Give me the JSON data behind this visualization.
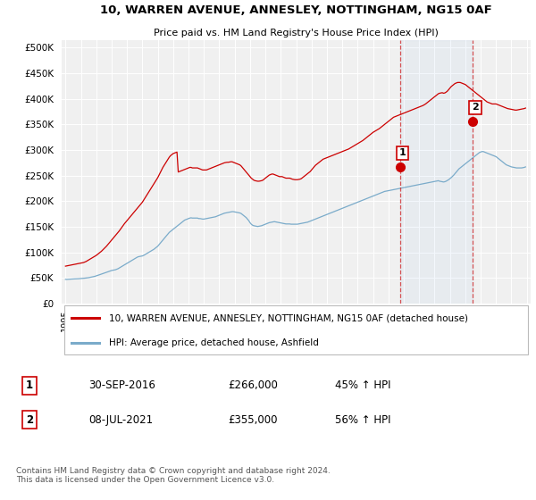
{
  "title": "10, WARREN AVENUE, ANNESLEY, NOTTINGHAM, NG15 0AF",
  "subtitle": "Price paid vs. HM Land Registry's House Price Index (HPI)",
  "ytick_values": [
    0,
    50000,
    100000,
    150000,
    200000,
    250000,
    300000,
    350000,
    400000,
    450000,
    500000
  ],
  "ylim": [
    0,
    515000
  ],
  "red_line_color": "#cc0000",
  "blue_line_color": "#7aabca",
  "marker1_date": 2016.75,
  "marker1_value": 266000,
  "marker2_date": 2021.5,
  "marker2_value": 355000,
  "vline_color": "#cc0000",
  "legend_label_red": "10, WARREN AVENUE, ANNESLEY, NOTTINGHAM, NG15 0AF (detached house)",
  "legend_label_blue": "HPI: Average price, detached house, Ashfield",
  "table_row1": [
    "1",
    "30-SEP-2016",
    "£266,000",
    "45% ↑ HPI"
  ],
  "table_row2": [
    "2",
    "08-JUL-2021",
    "£355,000",
    "56% ↑ HPI"
  ],
  "footnote": "Contains HM Land Registry data © Crown copyright and database right 2024.\nThis data is licensed under the Open Government Licence v3.0.",
  "hpi_monthly": {
    "start_year": 1995,
    "start_month": 1,
    "values": [
      47200,
      47100,
      47300,
      47500,
      47600,
      47800,
      47900,
      48000,
      48100,
      48200,
      48400,
      48600,
      48800,
      49000,
      49200,
      49500,
      49800,
      50100,
      50500,
      51000,
      51500,
      52000,
      52600,
      53200,
      54000,
      54800,
      55700,
      56600,
      57500,
      58400,
      59200,
      60000,
      61000,
      62000,
      63000,
      64000,
      64500,
      65000,
      65500,
      66000,
      67000,
      68000,
      69500,
      71000,
      72500,
      74000,
      75500,
      77000,
      78500,
      80000,
      81500,
      83000,
      84500,
      86000,
      87500,
      89000,
      90500,
      91500,
      92000,
      92500,
      93000,
      94000,
      95500,
      97000,
      98500,
      100000,
      101500,
      103000,
      104500,
      106000,
      108000,
      110000,
      112000,
      115000,
      118000,
      121000,
      124000,
      127000,
      130000,
      133000,
      136000,
      139000,
      141000,
      143000,
      145000,
      147000,
      149000,
      151000,
      153000,
      155000,
      157000,
      159000,
      161000,
      163000,
      164000,
      165000,
      166000,
      167000,
      167500,
      167000,
      167000,
      167000,
      167000,
      167000,
      166000,
      166000,
      165500,
      165000,
      165000,
      165500,
      166000,
      166500,
      167000,
      167500,
      168000,
      168500,
      169000,
      169500,
      170500,
      171500,
      172500,
      173500,
      174500,
      175500,
      176500,
      177000,
      177500,
      178000,
      178500,
      179000,
      179500,
      179500,
      179000,
      178500,
      178000,
      177500,
      177000,
      176000,
      174000,
      172000,
      170000,
      168000,
      165000,
      162000,
      158000,
      155000,
      153000,
      152000,
      151500,
      151000,
      150500,
      151000,
      151500,
      152000,
      153000,
      154000,
      155000,
      156000,
      157000,
      158000,
      158500,
      159000,
      159500,
      160000,
      159500,
      159000,
      158500,
      158000,
      157500,
      157000,
      156500,
      156000,
      155500,
      155500,
      155500,
      155500,
      155000,
      155000,
      155000,
      155000,
      155000,
      155000,
      155500,
      156000,
      156500,
      157000,
      157500,
      158000,
      158500,
      159000,
      160000,
      161000,
      162000,
      163000,
      164000,
      165000,
      166000,
      167000,
      168000,
      169000,
      170000,
      171000,
      172000,
      173000,
      174000,
      175000,
      176000,
      177000,
      178000,
      179000,
      180000,
      181000,
      182000,
      183000,
      184000,
      185000,
      186000,
      187000,
      188000,
      189000,
      190000,
      191000,
      192000,
      193000,
      194000,
      195000,
      196000,
      197000,
      198000,
      199000,
      200000,
      201000,
      202000,
      203000,
      204000,
      205000,
      206000,
      207000,
      208000,
      209000,
      210000,
      211000,
      212000,
      213000,
      214000,
      215000,
      216000,
      217000,
      218000,
      219000,
      219500,
      220000,
      220500,
      221000,
      221500,
      222000,
      222500,
      223000,
      223500,
      224000,
      224500,
      225000,
      225500,
      226000,
      226500,
      227000,
      227500,
      228000,
      228500,
      229000,
      229500,
      230000,
      230500,
      231000,
      231500,
      232000,
      232500,
      233000,
      233500,
      234000,
      234500,
      235000,
      235500,
      236000,
      236500,
      237000,
      237500,
      238000,
      238500,
      239000,
      239500,
      240000,
      239000,
      238500,
      238000,
      237500,
      238000,
      239000,
      240500,
      242000,
      244000,
      246000,
      248500,
      251000,
      254000,
      257000,
      260000,
      263000,
      265000,
      267000,
      269000,
      271000,
      273000,
      275000,
      277000,
      279000,
      281000,
      283000,
      285000,
      287000,
      289000,
      291000,
      293000,
      295000,
      296000,
      297000,
      297000,
      296000,
      295000,
      294000,
      293000,
      292000,
      291000,
      290000,
      289000,
      288000,
      287000,
      285000,
      283000,
      281000,
      279000,
      277000,
      275000,
      273000,
      271000,
      270000,
      269000,
      268000,
      267000,
      266500,
      266000,
      265500,
      265000,
      265000,
      265000,
      265000,
      265000,
      265500,
      266000,
      267000
    ]
  },
  "red_monthly": {
    "start_year": 1995,
    "start_month": 1,
    "values": [
      73000,
      73500,
      74000,
      74500,
      75000,
      75500,
      76000,
      76500,
      77000,
      77500,
      78000,
      78500,
      79000,
      79500,
      80000,
      81000,
      82000,
      83500,
      85000,
      86500,
      88000,
      89500,
      91000,
      92500,
      94000,
      96000,
      98000,
      100000,
      102000,
      104500,
      107000,
      109500,
      112000,
      115000,
      118000,
      121000,
      124000,
      127000,
      130000,
      133000,
      136000,
      139000,
      142000,
      145500,
      149000,
      152500,
      156000,
      159000,
      162000,
      165000,
      168000,
      171000,
      174000,
      177000,
      180000,
      183000,
      186000,
      189000,
      192000,
      195000,
      198000,
      202000,
      206000,
      210000,
      214000,
      218000,
      222000,
      226000,
      230000,
      234000,
      238000,
      242000,
      246000,
      251000,
      256000,
      261000,
      266000,
      270000,
      274000,
      278000,
      282000,
      286000,
      289000,
      291000,
      293000,
      294000,
      295000,
      296000,
      257000,
      258000,
      259000,
      260000,
      261000,
      262000,
      263000,
      264000,
      265000,
      266000,
      266000,
      265000,
      265000,
      265000,
      265000,
      265000,
      264000,
      263000,
      262000,
      261000,
      261000,
      261000,
      261000,
      262000,
      263000,
      264000,
      265000,
      266000,
      267000,
      268000,
      269000,
      270000,
      271000,
      272000,
      273000,
      274000,
      275000,
      275500,
      276000,
      276000,
      276500,
      277000,
      277000,
      276000,
      275000,
      274000,
      273000,
      272000,
      271000,
      269000,
      266000,
      263000,
      260000,
      257000,
      254000,
      251000,
      248000,
      245000,
      243000,
      241000,
      240000,
      239500,
      239000,
      239000,
      239500,
      240000,
      241000,
      243000,
      245000,
      247000,
      249000,
      251000,
      252000,
      253000,
      253000,
      252000,
      251000,
      250000,
      249000,
      248000,
      248000,
      248000,
      247000,
      246000,
      245000,
      245000,
      245000,
      245000,
      244000,
      243000,
      242500,
      242000,
      242000,
      242000,
      242500,
      243000,
      244000,
      246000,
      248000,
      250000,
      252000,
      254000,
      256000,
      258000,
      261000,
      264000,
      267000,
      270000,
      272000,
      274000,
      276000,
      278000,
      280000,
      282000,
      283000,
      284000,
      285000,
      286000,
      287000,
      288000,
      289000,
      290000,
      291000,
      292000,
      293000,
      294000,
      295000,
      296000,
      297000,
      298000,
      299000,
      300000,
      301000,
      302000,
      303500,
      305000,
      306500,
      308000,
      309500,
      311000,
      312500,
      314000,
      315500,
      317000,
      318500,
      320500,
      322500,
      324500,
      326500,
      328500,
      330500,
      332500,
      334500,
      336000,
      337500,
      339000,
      340500,
      342000,
      344000,
      346000,
      348000,
      350000,
      352000,
      354000,
      356000,
      358000,
      360000,
      362000,
      364000,
      365000,
      366000,
      367000,
      368000,
      369000,
      370000,
      371000,
      372000,
      373000,
      374000,
      375000,
      376000,
      377000,
      378000,
      379000,
      380000,
      381000,
      382000,
      383000,
      384000,
      385000,
      386000,
      387000,
      388500,
      390000,
      392000,
      394000,
      396000,
      398000,
      400000,
      402000,
      404000,
      406000,
      408000,
      410000,
      411000,
      411500,
      412000,
      411000,
      411500,
      413000,
      415000,
      418000,
      421000,
      424000,
      426000,
      428000,
      430000,
      431000,
      432000,
      432000,
      432000,
      431000,
      430000,
      429000,
      428000,
      426000,
      424000,
      422000,
      420000,
      418000,
      416000,
      414000,
      412000,
      410000,
      408000,
      406000,
      404000,
      402000,
      400000,
      398000,
      396000,
      394000,
      393000,
      392000,
      391000,
      390000,
      390000,
      390000,
      390000,
      389000,
      388000,
      387000,
      386000,
      385000,
      384000,
      383000,
      382000,
      381000,
      380500,
      380000,
      379500,
      379000,
      378500,
      378000,
      378000,
      378500,
      379000,
      379500,
      380000,
      380500,
      381000,
      382000
    ]
  },
  "xlim": [
    1994.75,
    2025.25
  ],
  "xtick_years": [
    1995,
    1996,
    1997,
    1998,
    1999,
    2000,
    2001,
    2002,
    2003,
    2004,
    2005,
    2006,
    2007,
    2008,
    2009,
    2010,
    2011,
    2012,
    2013,
    2014,
    2015,
    2016,
    2017,
    2018,
    2019,
    2020,
    2021,
    2022,
    2023,
    2024,
    2025
  ]
}
